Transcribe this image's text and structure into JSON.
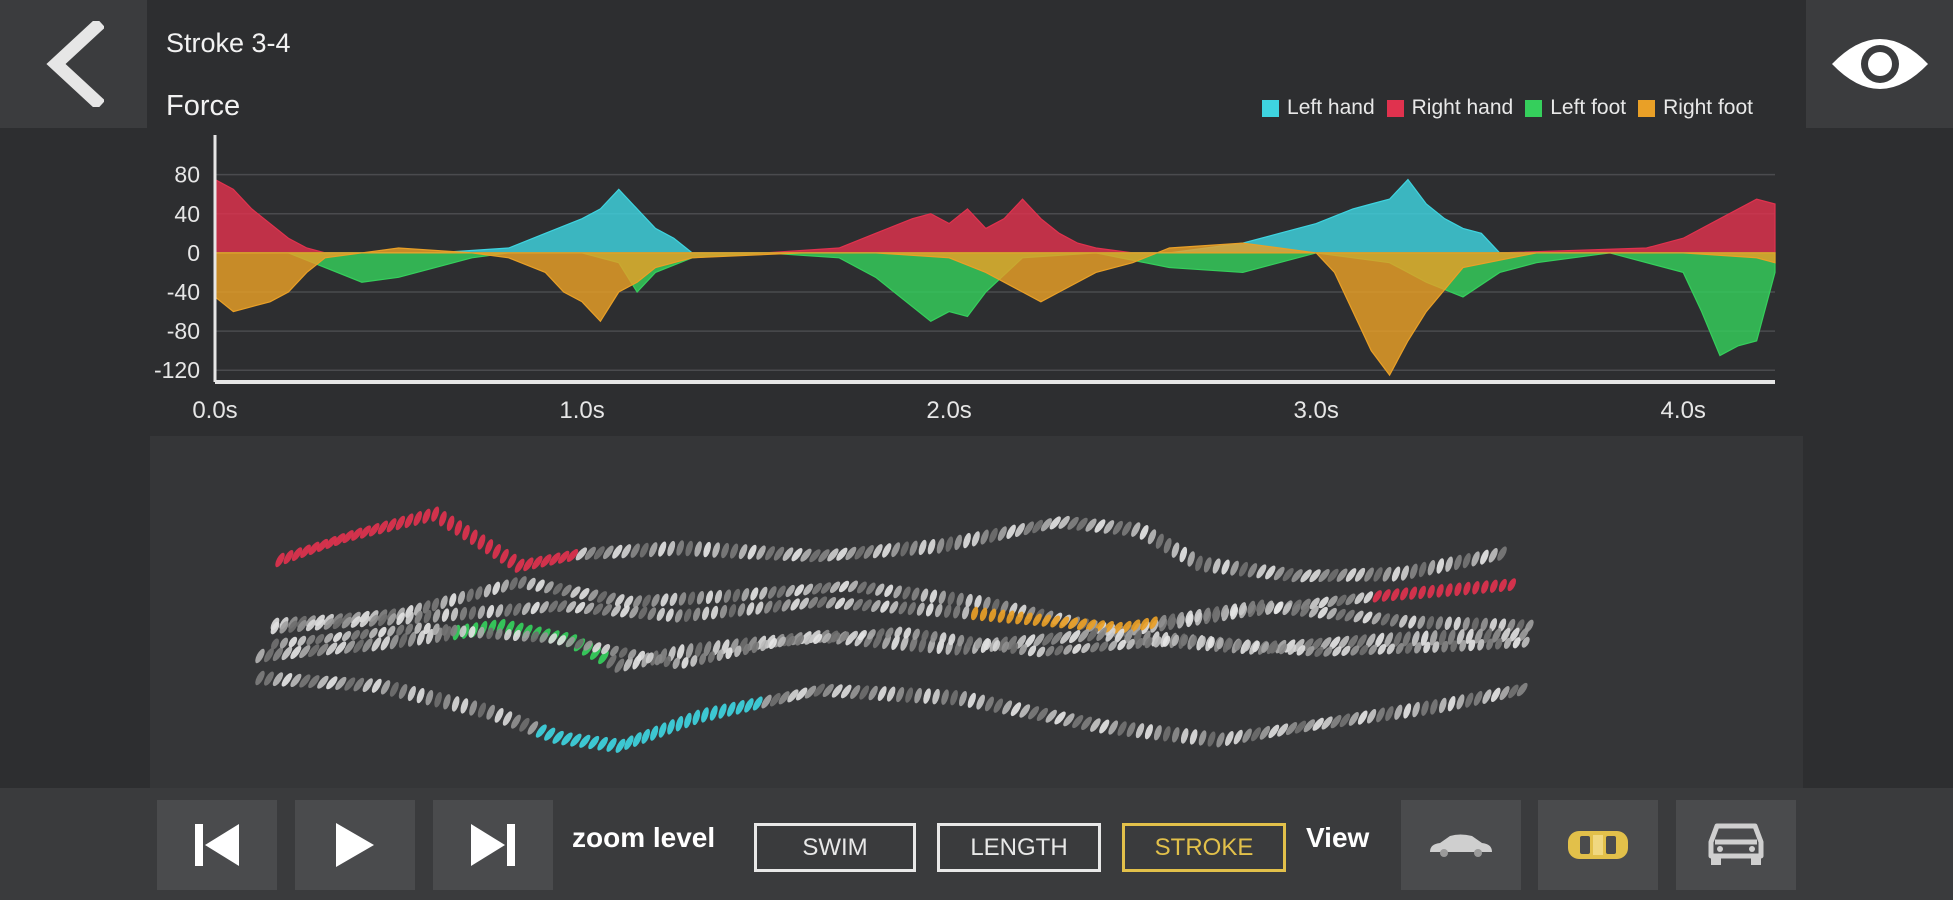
{
  "header": {
    "stroke_title": "Stroke 3-4"
  },
  "icons": {
    "back": "chevron-left-icon",
    "eye": "eye-icon"
  },
  "chart_data": {
    "type": "area",
    "title": "Force",
    "xlabel": "",
    "ylabel": "",
    "ylim": [
      -130,
      95
    ],
    "xlim": [
      0,
      4.25
    ],
    "yticks": [
      80,
      40,
      0,
      -40,
      -80,
      -120
    ],
    "xticks": [
      0,
      1,
      2,
      3,
      4
    ],
    "xtick_labels": [
      "0.0s",
      "1.0s",
      "2.0s",
      "3.0s",
      "4.0s"
    ],
    "grid": true,
    "legend_position": "top-right",
    "series": [
      {
        "name": "Left hand",
        "color": "#3ed4e0",
        "x": [
          0,
          0.3,
          0.6,
          0.8,
          0.9,
          1.0,
          1.05,
          1.1,
          1.15,
          1.2,
          1.25,
          1.3,
          1.4,
          1.6,
          2.4,
          2.6,
          2.8,
          2.9,
          3.0,
          3.1,
          3.15,
          3.2,
          3.25,
          3.3,
          3.35,
          3.4,
          3.45,
          3.5,
          3.7,
          4.25
        ],
        "values": [
          0,
          0,
          0,
          5,
          20,
          35,
          45,
          65,
          45,
          25,
          15,
          0,
          0,
          0,
          0,
          0,
          10,
          20,
          30,
          45,
          50,
          55,
          75,
          50,
          35,
          25,
          20,
          0,
          0,
          0
        ]
      },
      {
        "name": "Right hand",
        "color": "#e0324e",
        "x": [
          0,
          0.05,
          0.1,
          0.15,
          0.2,
          0.25,
          0.3,
          0.5,
          1.0,
          1.5,
          1.7,
          1.8,
          1.9,
          1.95,
          2.0,
          2.05,
          2.1,
          2.15,
          2.2,
          2.25,
          2.3,
          2.35,
          2.4,
          2.5,
          3.0,
          3.5,
          3.9,
          4.0,
          4.1,
          4.2,
          4.25
        ],
        "values": [
          75,
          65,
          45,
          30,
          15,
          5,
          0,
          0,
          0,
          0,
          5,
          20,
          35,
          40,
          30,
          45,
          25,
          35,
          55,
          35,
          20,
          10,
          5,
          0,
          0,
          0,
          5,
          15,
          35,
          55,
          50
        ]
      },
      {
        "name": "Left foot",
        "color": "#35cf5c",
        "x": [
          0,
          0.2,
          0.3,
          0.4,
          0.5,
          0.6,
          0.7,
          0.8,
          1.0,
          1.1,
          1.15,
          1.2,
          1.3,
          1.5,
          1.7,
          1.8,
          1.9,
          1.95,
          2.0,
          2.05,
          2.1,
          2.2,
          2.4,
          2.6,
          2.8,
          3.0,
          3.2,
          3.3,
          3.4,
          3.5,
          3.6,
          3.8,
          4.0,
          4.05,
          4.1,
          4.15,
          4.2,
          4.25
        ],
        "values": [
          0,
          0,
          -15,
          -30,
          -25,
          -15,
          -5,
          0,
          0,
          -10,
          -40,
          -20,
          -5,
          0,
          -5,
          -25,
          -55,
          -70,
          -60,
          -65,
          -40,
          -5,
          0,
          -15,
          -20,
          0,
          -10,
          -30,
          -45,
          -20,
          -10,
          0,
          -20,
          -60,
          -105,
          -95,
          -90,
          -20
        ]
      },
      {
        "name": "Right foot",
        "color": "#e9a027",
        "x": [
          0,
          0.05,
          0.1,
          0.15,
          0.2,
          0.25,
          0.3,
          0.5,
          0.7,
          0.8,
          0.9,
          0.95,
          1.0,
          1.05,
          1.1,
          1.15,
          1.2,
          1.3,
          1.6,
          1.8,
          2.0,
          2.1,
          2.2,
          2.25,
          2.3,
          2.4,
          2.5,
          2.6,
          2.8,
          2.9,
          3.0,
          3.05,
          3.1,
          3.15,
          3.2,
          3.25,
          3.3,
          3.4,
          3.6,
          3.8,
          4.0,
          4.2,
          4.25
        ],
        "values": [
          -45,
          -60,
          -55,
          -50,
          -40,
          -20,
          -5,
          5,
          0,
          -5,
          -20,
          -40,
          -50,
          -70,
          -40,
          -30,
          -15,
          -5,
          0,
          0,
          -5,
          -20,
          -40,
          -50,
          -40,
          -20,
          -10,
          5,
          10,
          5,
          0,
          -20,
          -60,
          -100,
          -125,
          -90,
          -60,
          -15,
          0,
          0,
          0,
          -5,
          -10
        ]
      }
    ]
  },
  "zoom": {
    "label": "zoom level",
    "buttons": [
      "SWIM",
      "LENGTH",
      "STROKE"
    ],
    "active": "STROKE"
  },
  "view": {
    "label": "View"
  },
  "colors": {
    "accent": "#e2c04a",
    "panel": "#353638"
  }
}
